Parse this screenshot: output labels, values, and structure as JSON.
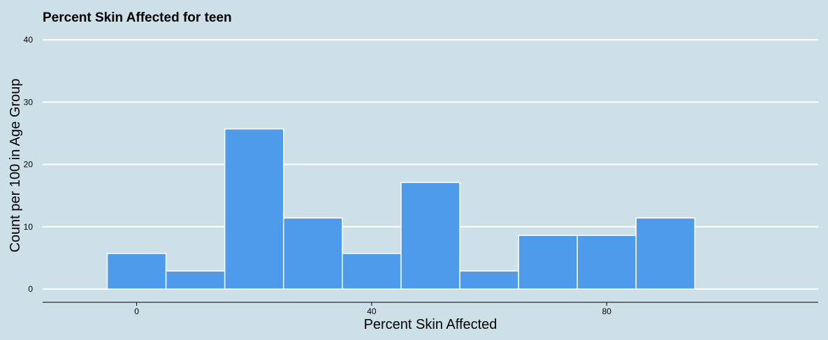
{
  "chart_data": {
    "type": "bar",
    "title": "Percent Skin Affected for teen",
    "xlabel": "Percent Skin Affected",
    "ylabel": "Count per 100 in Age Group",
    "bin_width": 10,
    "bins": [
      {
        "center": 0,
        "value": 5.7
      },
      {
        "center": 10,
        "value": 2.9
      },
      {
        "center": 20,
        "value": 25.7
      },
      {
        "center": 30,
        "value": 11.4
      },
      {
        "center": 40,
        "value": 5.7
      },
      {
        "center": 50,
        "value": 17.1
      },
      {
        "center": 60,
        "value": 2.9
      },
      {
        "center": 70,
        "value": 8.6
      },
      {
        "center": 80,
        "value": 8.6
      },
      {
        "center": 90,
        "value": 11.4
      }
    ],
    "xlim": [
      -16,
      116
    ],
    "ylim": [
      0,
      40
    ],
    "x_ticks": [
      0,
      40,
      80
    ],
    "y_ticks": [
      0,
      10,
      20,
      30,
      40
    ],
    "grid": "horizontal",
    "legend": "none",
    "colors": {
      "background": "#cde0e8",
      "bar_fill": "#4f9beb",
      "bar_stroke": "#ffffff",
      "grid": "#ffffff",
      "axis": "#000000"
    }
  }
}
